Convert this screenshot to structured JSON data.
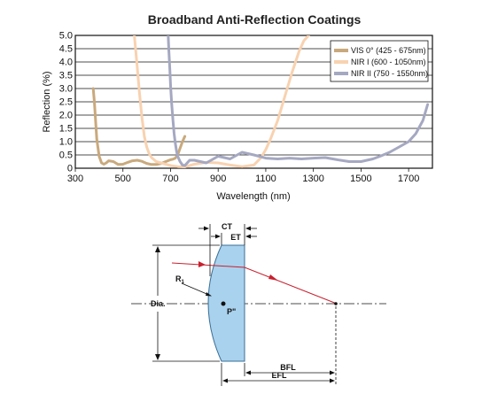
{
  "chart_data": {
    "type": "line",
    "title": "Broadband Anti-Reflection Coatings",
    "xlabel": "Wavelength (nm)",
    "ylabel": "Reflection (%)",
    "xlim": [
      300,
      1800
    ],
    "ylim": [
      0,
      5.0
    ],
    "xticks": [
      "300",
      "500",
      "700",
      "900",
      "1100",
      "1300",
      "1500",
      "1700"
    ],
    "yticks": [
      "0",
      "0.5",
      "1.0",
      "1.5",
      "2.0",
      "2.5",
      "3.0",
      "3.5",
      "4.0",
      "4.5",
      "5.0"
    ],
    "grid": "horizontal",
    "legend_position": "top-right",
    "series": [
      {
        "name": "VIS 0° (425 - 675nm)",
        "color": "#c9a97c",
        "x": [
          375,
          380,
          390,
          400,
          410,
          420,
          430,
          440,
          460,
          480,
          500,
          520,
          540,
          560,
          580,
          600,
          620,
          640,
          660,
          680,
          700,
          710,
          720,
          730,
          740,
          750,
          760
        ],
        "y": [
          3.0,
          2.5,
          1.1,
          0.45,
          0.2,
          0.15,
          0.2,
          0.28,
          0.25,
          0.14,
          0.15,
          0.22,
          0.28,
          0.3,
          0.26,
          0.18,
          0.14,
          0.14,
          0.18,
          0.25,
          0.32,
          0.34,
          0.38,
          0.5,
          0.75,
          1.0,
          1.2
        ]
      },
      {
        "name": "NIR I (600 - 1050nm)",
        "color": "#f8d2b0",
        "x": [
          548,
          552,
          560,
          570,
          580,
          590,
          600,
          610,
          620,
          640,
          660,
          680,
          700,
          730,
          760,
          800,
          850,
          900,
          950,
          1000,
          1050,
          1080,
          1100,
          1120,
          1150,
          1180,
          1210,
          1240,
          1260,
          1280
        ],
        "y": [
          5.0,
          4.6,
          3.8,
          2.8,
          1.9,
          1.2,
          0.8,
          0.55,
          0.4,
          0.25,
          0.2,
          0.15,
          0.1,
          0.06,
          0.05,
          0.15,
          0.22,
          0.2,
          0.12,
          0.06,
          0.12,
          0.4,
          0.7,
          1.1,
          1.8,
          2.7,
          3.6,
          4.4,
          4.8,
          5.0
        ]
      },
      {
        "name": "NIR II (750 - 1550nm)",
        "color": "#a5a8c1",
        "x": [
          690,
          693,
          697,
          700,
          705,
          710,
          715,
          720,
          725,
          730,
          740,
          750,
          760,
          780,
          800,
          850,
          900,
          950,
          1000,
          1050,
          1100,
          1150,
          1200,
          1250,
          1300,
          1350,
          1400,
          1450,
          1500,
          1550,
          1580,
          1620,
          1660,
          1700,
          1730,
          1760,
          1780
        ],
        "y": [
          5.0,
          4.4,
          3.7,
          3.1,
          2.4,
          1.8,
          1.3,
          0.95,
          0.65,
          0.45,
          0.25,
          0.12,
          0.1,
          0.3,
          0.3,
          0.2,
          0.45,
          0.35,
          0.6,
          0.5,
          0.38,
          0.35,
          0.38,
          0.35,
          0.38,
          0.4,
          0.32,
          0.25,
          0.25,
          0.35,
          0.45,
          0.6,
          0.8,
          1.0,
          1.3,
          1.8,
          2.4
        ]
      }
    ]
  },
  "diagram": {
    "labels": {
      "ct": "CT",
      "et": "ET",
      "r1": "R",
      "r1_sub": "1",
      "dia": "Dia.",
      "p": "P\"",
      "bfl": "BFL",
      "efl": "EFL"
    },
    "colors": {
      "lens_fill": "#a9d2ee",
      "lens_stroke": "#3a6f96",
      "ray": "#c8202f"
    }
  }
}
